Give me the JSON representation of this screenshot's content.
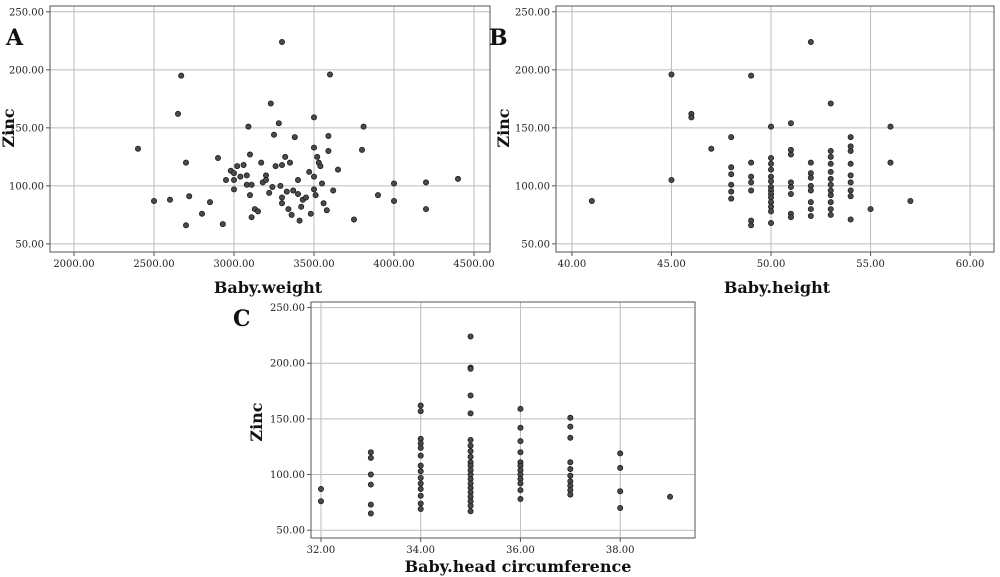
{
  "chart_data": [
    {
      "type": "scatter",
      "panel_label": "A",
      "xlabel": "Baby.weight",
      "ylabel": "Zinc",
      "xlim": [
        1850,
        4600
      ],
      "ylim": [
        43,
        255
      ],
      "xticks": [
        2000,
        2500,
        3000,
        3500,
        4000,
        4500
      ],
      "xtick_labels": [
        "2000.00",
        "2500.00",
        "3000.00",
        "3500.00",
        "4000.00",
        "4500.00"
      ],
      "yticks": [
        50,
        100,
        150,
        200,
        250
      ],
      "ytick_labels": [
        "50.00",
        "100.00",
        "150.00",
        "200.00",
        "250.00"
      ],
      "grid": true,
      "points": [
        [
          2400,
          132
        ],
        [
          2500,
          87
        ],
        [
          2600,
          88
        ],
        [
          2650,
          162
        ],
        [
          2670,
          195
        ],
        [
          2700,
          120
        ],
        [
          2700,
          66
        ],
        [
          2720,
          91
        ],
        [
          2800,
          76
        ],
        [
          2850,
          86
        ],
        [
          2900,
          124
        ],
        [
          2930,
          67
        ],
        [
          2950,
          105
        ],
        [
          2980,
          113
        ],
        [
          3000,
          111
        ],
        [
          3000,
          105
        ],
        [
          3000,
          97
        ],
        [
          3020,
          117
        ],
        [
          3040,
          108
        ],
        [
          3060,
          118
        ],
        [
          3080,
          101
        ],
        [
          3080,
          109
        ],
        [
          3090,
          151
        ],
        [
          3100,
          127
        ],
        [
          3100,
          92
        ],
        [
          3110,
          101
        ],
        [
          3110,
          73
        ],
        [
          3130,
          80
        ],
        [
          3150,
          78
        ],
        [
          3170,
          120
        ],
        [
          3180,
          103
        ],
        [
          3200,
          109
        ],
        [
          3200,
          105
        ],
        [
          3220,
          94
        ],
        [
          3230,
          171
        ],
        [
          3240,
          99
        ],
        [
          3250,
          144
        ],
        [
          3260,
          117
        ],
        [
          3280,
          154
        ],
        [
          3290,
          100
        ],
        [
          3300,
          85
        ],
        [
          3300,
          118
        ],
        [
          3300,
          224
        ],
        [
          3300,
          90
        ],
        [
          3320,
          125
        ],
        [
          3330,
          95
        ],
        [
          3340,
          80
        ],
        [
          3350,
          120
        ],
        [
          3360,
          75
        ],
        [
          3370,
          96
        ],
        [
          3380,
          142
        ],
        [
          3400,
          105
        ],
        [
          3400,
          93
        ],
        [
          3410,
          70
        ],
        [
          3420,
          82
        ],
        [
          3430,
          88
        ],
        [
          3450,
          90
        ],
        [
          3470,
          112
        ],
        [
          3480,
          76
        ],
        [
          3500,
          159
        ],
        [
          3500,
          133
        ],
        [
          3500,
          108
        ],
        [
          3500,
          97
        ],
        [
          3510,
          92
        ],
        [
          3520,
          125
        ],
        [
          3530,
          120
        ],
        [
          3540,
          117
        ],
        [
          3550,
          102
        ],
        [
          3560,
          85
        ],
        [
          3580,
          79
        ],
        [
          3590,
          143
        ],
        [
          3590,
          130
        ],
        [
          3600,
          196
        ],
        [
          3620,
          96
        ],
        [
          3650,
          114
        ],
        [
          3750,
          71
        ],
        [
          3800,
          131
        ],
        [
          3810,
          151
        ],
        [
          3900,
          92
        ],
        [
          4000,
          102
        ],
        [
          4000,
          87
        ],
        [
          4200,
          103
        ],
        [
          4200,
          80
        ],
        [
          4400,
          106
        ]
      ]
    },
    {
      "type": "scatter",
      "panel_label": "B",
      "xlabel": "Baby.height",
      "ylabel": "Zinc",
      "xlim": [
        39.2,
        61.2
      ],
      "ylim": [
        43,
        255
      ],
      "xticks": [
        40,
        45,
        50,
        55,
        60
      ],
      "xtick_labels": [
        "40.00",
        "45.00",
        "50.00",
        "55.00",
        "60.00"
      ],
      "yticks": [
        50,
        100,
        150,
        200,
        250
      ],
      "ytick_labels": [
        "50.00",
        "100.00",
        "150.00",
        "200.00",
        "250.00"
      ],
      "grid": true,
      "points": [
        [
          41,
          87
        ],
        [
          45,
          196
        ],
        [
          45,
          105
        ],
        [
          46,
          162
        ],
        [
          46,
          159
        ],
        [
          47,
          132
        ],
        [
          48,
          142
        ],
        [
          48,
          116
        ],
        [
          48,
          110
        ],
        [
          48,
          101
        ],
        [
          48,
          95
        ],
        [
          48,
          89
        ],
        [
          49,
          195
        ],
        [
          49,
          120
        ],
        [
          49,
          108
        ],
        [
          49,
          103
        ],
        [
          49,
          96
        ],
        [
          49,
          70
        ],
        [
          49,
          66
        ],
        [
          50,
          151
        ],
        [
          50,
          124
        ],
        [
          50,
          119
        ],
        [
          50,
          114
        ],
        [
          50,
          108
        ],
        [
          50,
          104
        ],
        [
          50,
          99
        ],
        [
          50,
          96
        ],
        [
          50,
          93
        ],
        [
          50,
          90
        ],
        [
          50,
          86
        ],
        [
          50,
          82
        ],
        [
          50,
          78
        ],
        [
          50,
          68
        ],
        [
          51,
          154
        ],
        [
          51,
          131
        ],
        [
          51,
          127
        ],
        [
          51,
          103
        ],
        [
          51,
          99
        ],
        [
          51,
          93
        ],
        [
          51,
          76
        ],
        [
          51,
          73
        ],
        [
          52,
          224
        ],
        [
          52,
          120
        ],
        [
          52,
          111
        ],
        [
          52,
          107
        ],
        [
          52,
          100
        ],
        [
          52,
          96
        ],
        [
          52,
          86
        ],
        [
          52,
          80
        ],
        [
          52,
          74
        ],
        [
          53,
          171
        ],
        [
          53,
          130
        ],
        [
          53,
          125
        ],
        [
          53,
          119
        ],
        [
          53,
          112
        ],
        [
          53,
          106
        ],
        [
          53,
          101
        ],
        [
          53,
          96
        ],
        [
          53,
          92
        ],
        [
          53,
          86
        ],
        [
          53,
          80
        ],
        [
          53,
          75
        ],
        [
          54,
          142
        ],
        [
          54,
          134
        ],
        [
          54,
          130
        ],
        [
          54,
          119
        ],
        [
          54,
          109
        ],
        [
          54,
          103
        ],
        [
          54,
          96
        ],
        [
          54,
          91
        ],
        [
          54,
          71
        ],
        [
          55,
          80
        ],
        [
          56,
          151
        ],
        [
          56,
          120
        ],
        [
          57,
          87
        ]
      ]
    },
    {
      "type": "scatter",
      "panel_label": "C",
      "xlabel": "Baby.head circumference",
      "ylabel": "Zinc",
      "xlim": [
        31.8,
        39.5
      ],
      "ylim": [
        43,
        255
      ],
      "xticks": [
        32,
        34,
        36,
        38
      ],
      "xtick_labels": [
        "32.00",
        "34.00",
        "36.00",
        "38.00"
      ],
      "yticks": [
        50,
        100,
        150,
        200,
        250
      ],
      "ytick_labels": [
        "50.00",
        "100.00",
        "150.00",
        "200.00",
        "250.00"
      ],
      "grid": true,
      "points": [
        [
          32,
          87
        ],
        [
          32,
          76
        ],
        [
          33,
          120
        ],
        [
          33,
          115
        ],
        [
          33,
          100
        ],
        [
          33,
          91
        ],
        [
          33,
          73
        ],
        [
          33,
          65
        ],
        [
          34,
          162
        ],
        [
          34,
          157
        ],
        [
          34,
          132
        ],
        [
          34,
          128
        ],
        [
          34,
          124
        ],
        [
          34,
          117
        ],
        [
          34,
          108
        ],
        [
          34,
          103
        ],
        [
          34,
          97
        ],
        [
          34,
          92
        ],
        [
          34,
          87
        ],
        [
          34,
          81
        ],
        [
          34,
          74
        ],
        [
          34,
          69
        ],
        [
          35,
          224
        ],
        [
          35,
          196
        ],
        [
          35,
          195
        ],
        [
          35,
          171
        ],
        [
          35,
          155
        ],
        [
          35,
          131
        ],
        [
          35,
          126
        ],
        [
          35,
          121
        ],
        [
          35,
          116
        ],
        [
          35,
          111
        ],
        [
          35,
          108
        ],
        [
          35,
          104
        ],
        [
          35,
          100
        ],
        [
          35,
          96
        ],
        [
          35,
          92
        ],
        [
          35,
          88
        ],
        [
          35,
          84
        ],
        [
          35,
          80
        ],
        [
          35,
          76
        ],
        [
          35,
          72
        ],
        [
          35,
          67
        ],
        [
          36,
          159
        ],
        [
          36,
          142
        ],
        [
          36,
          130
        ],
        [
          36,
          120
        ],
        [
          36,
          111
        ],
        [
          36,
          108
        ],
        [
          36,
          104
        ],
        [
          36,
          100
        ],
        [
          36,
          96
        ],
        [
          36,
          92
        ],
        [
          36,
          86
        ],
        [
          36,
          78
        ],
        [
          37,
          151
        ],
        [
          37,
          143
        ],
        [
          37,
          133
        ],
        [
          37,
          111
        ],
        [
          37,
          105
        ],
        [
          37,
          99
        ],
        [
          37,
          94
        ],
        [
          37,
          90
        ],
        [
          37,
          86
        ],
        [
          37,
          82
        ],
        [
          38,
          119
        ],
        [
          38,
          106
        ],
        [
          38,
          85
        ],
        [
          38,
          70
        ],
        [
          39,
          80
        ]
      ]
    }
  ]
}
